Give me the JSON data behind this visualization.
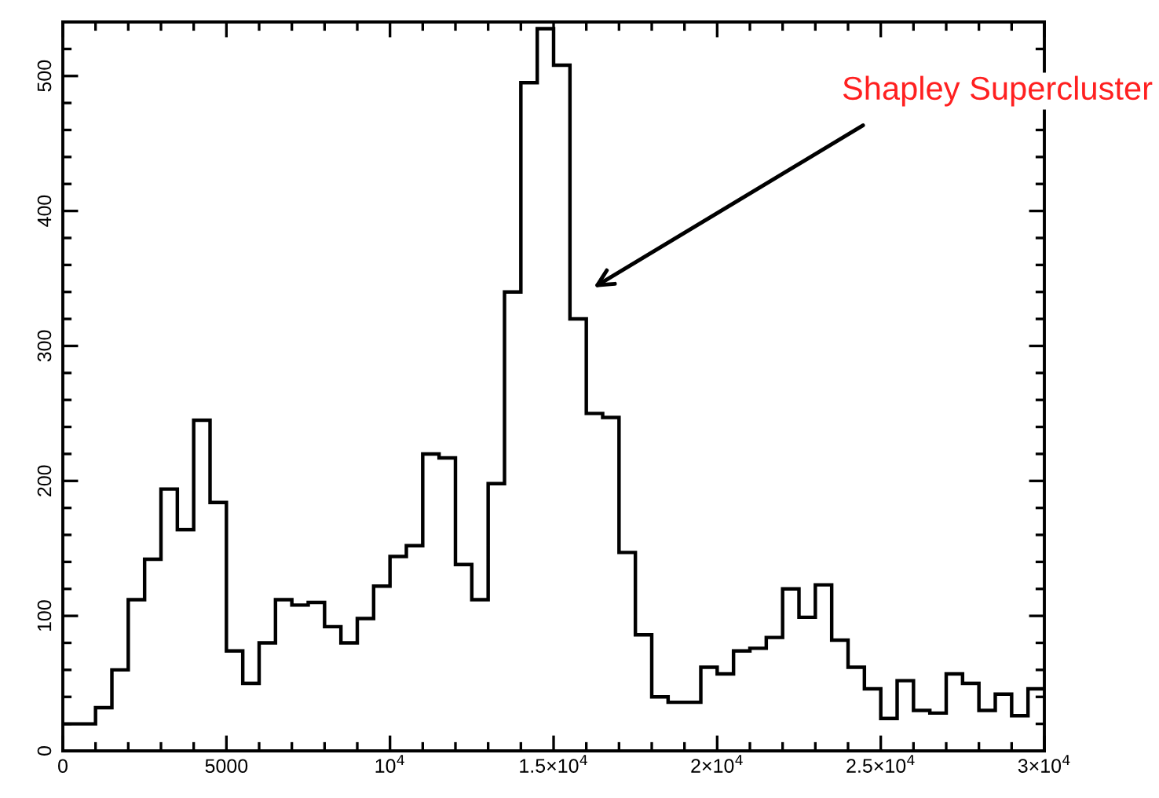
{
  "chart_data": {
    "type": "histogram",
    "bins": [
      0,
      500,
      1000,
      1500,
      2000,
      2500,
      3000,
      3500,
      4000,
      4500,
      5000,
      5500,
      6000,
      6500,
      7000,
      7500,
      8000,
      8500,
      9000,
      9500,
      10000,
      10500,
      11000,
      11500,
      12000,
      12500,
      13000,
      13500,
      14000,
      14500,
      15000,
      15500,
      16000,
      16500,
      17000,
      17500,
      18000,
      18500,
      19000,
      19500,
      20000,
      20500,
      21000,
      21500,
      22000,
      22500,
      23000,
      23500,
      24000,
      24500,
      25000,
      25500,
      26000,
      26500,
      27000,
      27500,
      28000,
      28500,
      29000,
      29500,
      30000
    ],
    "values": [
      20,
      20,
      32,
      60,
      112,
      142,
      194,
      164,
      245,
      184,
      74,
      50,
      80,
      112,
      108,
      110,
      92,
      80,
      98,
      122,
      144,
      152,
      220,
      217,
      138,
      112,
      198,
      340,
      495,
      535,
      508,
      320,
      250,
      247,
      147,
      86,
      40,
      36,
      36,
      62,
      57,
      74,
      76,
      84,
      120,
      99,
      123,
      82,
      62,
      46,
      24,
      52,
      30,
      28,
      57,
      50,
      30,
      42,
      26,
      46
    ],
    "color": "#000000",
    "xlim": [
      0,
      30000
    ],
    "ylim": [
      0,
      540
    ],
    "xticks": [
      0,
      {
        "value": 1000,
        "label": null
      },
      {
        "value": 2000,
        "label": null
      },
      {
        "value": 3000,
        "label": null
      },
      {
        "value": 4000,
        "label": null
      },
      5000,
      {
        "value": 6000,
        "label": null
      },
      {
        "value": 7000,
        "label": null
      },
      {
        "value": 8000,
        "label": null
      },
      {
        "value": 9000,
        "label": null
      },
      {
        "value": 10000,
        "label": "10$^{4}$"
      },
      {
        "value": 11000,
        "label": null
      },
      {
        "value": 12000,
        "label": null
      },
      {
        "value": 13000,
        "label": null
      },
      {
        "value": 14000,
        "label": null
      },
      {
        "value": 15000,
        "label": "1.5×10$^{4}$"
      },
      {
        "value": 16000,
        "label": null
      },
      {
        "value": 17000,
        "label": null
      },
      {
        "value": 18000,
        "label": null
      },
      {
        "value": 19000,
        "label": null
      },
      {
        "value": 20000,
        "label": "2×10$^{4}$"
      },
      {
        "value": 21000,
        "label": null
      },
      {
        "value": 22000,
        "label": null
      },
      {
        "value": 23000,
        "label": null
      },
      {
        "value": 24000,
        "label": null
      },
      {
        "value": 25000,
        "label": "2.5×10$^{4}$"
      },
      {
        "value": 26000,
        "label": null
      },
      {
        "value": 27000,
        "label": null
      },
      {
        "value": 28000,
        "label": null
      },
      {
        "value": 29000,
        "label": null
      },
      {
        "value": 30000,
        "label": "3×10$^{4}$"
      }
    ],
    "yticks": [
      0,
      {
        "value": 20,
        "label": null
      },
      {
        "value": 40,
        "label": null
      },
      {
        "value": 60,
        "label": null
      },
      {
        "value": 80,
        "label": null
      },
      100,
      {
        "value": 120,
        "label": null
      },
      {
        "value": 140,
        "label": null
      },
      {
        "value": 160,
        "label": null
      },
      {
        "value": 180,
        "label": null
      },
      200,
      {
        "value": 220,
        "label": null
      },
      {
        "value": 240,
        "label": null
      },
      {
        "value": 260,
        "label": null
      },
      {
        "value": 280,
        "label": null
      },
      300,
      {
        "value": 320,
        "label": null
      },
      {
        "value": 340,
        "label": null
      },
      {
        "value": 360,
        "label": null
      },
      {
        "value": 380,
        "label": null
      },
      400,
      {
        "value": 420,
        "label": null
      },
      {
        "value": 440,
        "label": null
      },
      {
        "value": 460,
        "label": null
      },
      {
        "value": 480,
        "label": null
      },
      500,
      {
        "value": 520,
        "label": null
      }
    ],
    "annotations": [
      "Shapley Supercluster"
    ],
    "grid": false
  }
}
